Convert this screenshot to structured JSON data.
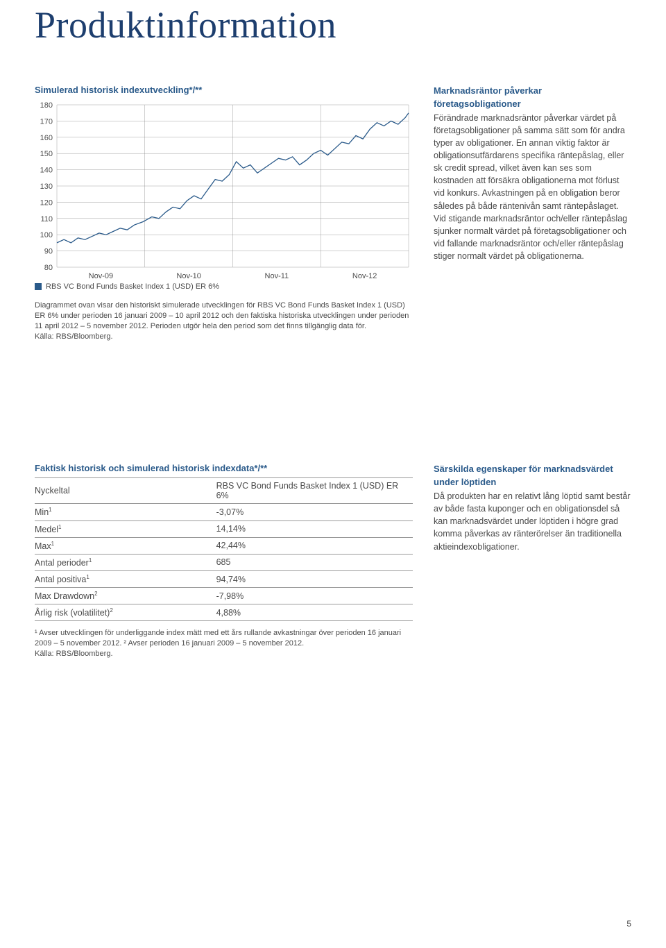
{
  "page": {
    "title": "Produktinformation",
    "page_number": "5"
  },
  "chart": {
    "title": "Simulerad historisk indexutveckling*/**",
    "type": "line",
    "ylim": [
      80,
      180
    ],
    "ytick_step": 10,
    "yticks": [
      "180",
      "170",
      "160",
      "150",
      "140",
      "130",
      "120",
      "110",
      "100",
      "90",
      "80"
    ],
    "xticks": [
      "Nov-09",
      "Nov-10",
      "Nov-11",
      "Nov-12"
    ],
    "line_color": "#2a5a8a",
    "line_width": 1.3,
    "grid_color": "#888888",
    "background_color": "#ffffff",
    "label_fontsize": 11,
    "series": [
      {
        "x": 0.0,
        "y": 95
      },
      {
        "x": 0.02,
        "y": 97
      },
      {
        "x": 0.04,
        "y": 95
      },
      {
        "x": 0.06,
        "y": 98
      },
      {
        "x": 0.08,
        "y": 97
      },
      {
        "x": 0.1,
        "y": 99
      },
      {
        "x": 0.12,
        "y": 101
      },
      {
        "x": 0.14,
        "y": 100
      },
      {
        "x": 0.16,
        "y": 102
      },
      {
        "x": 0.18,
        "y": 104
      },
      {
        "x": 0.2,
        "y": 103
      },
      {
        "x": 0.22,
        "y": 106
      },
      {
        "x": 0.245,
        "y": 108
      },
      {
        "x": 0.27,
        "y": 111
      },
      {
        "x": 0.29,
        "y": 110
      },
      {
        "x": 0.31,
        "y": 114
      },
      {
        "x": 0.33,
        "y": 117
      },
      {
        "x": 0.35,
        "y": 116
      },
      {
        "x": 0.37,
        "y": 121
      },
      {
        "x": 0.39,
        "y": 124
      },
      {
        "x": 0.41,
        "y": 122
      },
      {
        "x": 0.43,
        "y": 128
      },
      {
        "x": 0.45,
        "y": 134
      },
      {
        "x": 0.47,
        "y": 133
      },
      {
        "x": 0.49,
        "y": 137
      },
      {
        "x": 0.51,
        "y": 145
      },
      {
        "x": 0.53,
        "y": 141
      },
      {
        "x": 0.55,
        "y": 143
      },
      {
        "x": 0.57,
        "y": 138
      },
      {
        "x": 0.59,
        "y": 141
      },
      {
        "x": 0.61,
        "y": 144
      },
      {
        "x": 0.63,
        "y": 147
      },
      {
        "x": 0.65,
        "y": 146
      },
      {
        "x": 0.67,
        "y": 148
      },
      {
        "x": 0.69,
        "y": 143
      },
      {
        "x": 0.71,
        "y": 146
      },
      {
        "x": 0.73,
        "y": 150
      },
      {
        "x": 0.75,
        "y": 152
      },
      {
        "x": 0.77,
        "y": 149
      },
      {
        "x": 0.79,
        "y": 153
      },
      {
        "x": 0.81,
        "y": 157
      },
      {
        "x": 0.83,
        "y": 156
      },
      {
        "x": 0.85,
        "y": 161
      },
      {
        "x": 0.87,
        "y": 159
      },
      {
        "x": 0.89,
        "y": 165
      },
      {
        "x": 0.91,
        "y": 169
      },
      {
        "x": 0.93,
        "y": 167
      },
      {
        "x": 0.95,
        "y": 170
      },
      {
        "x": 0.97,
        "y": 168
      },
      {
        "x": 0.99,
        "y": 172
      },
      {
        "x": 1.0,
        "y": 175
      }
    ],
    "legend_label": "RBS VC Bond Funds Basket Index 1 (USD) ER 6%",
    "description": "Diagrammet ovan visar den historiskt simulerade utvecklingen för RBS VC Bond Funds Basket Index 1 (USD) ER 6% under perioden 16 januari 2009 – 10 april 2012 och den faktiska historiska utvecklingen under perioden 11 april 2012 – 5 november 2012. Perioden utgör hela den period som det finns tillgänglig data för.\nKälla: RBS/Bloomberg."
  },
  "rightcol1": {
    "heading": "Marknadsräntor påverkar företagsobligationer",
    "body": "Förändrade marknadsräntor påverkar värdet på företagsobligationer på samma sätt som för andra typer av obligationer. En annan viktig faktor är obligationsutfärdarens specifika räntepåslag, eller sk credit spread, vilket även kan ses som kostnaden att försäkra obligationerna mot förlust vid konkurs. Avkastningen på en obligation beror således på både räntenivån samt räntepåslaget. Vid stigande marknadsräntor och/eller räntepåslag sjunker normalt värdet på företagsobligationer och vid fallande marknadsräntor och/eller räntepåslag stiger normalt värdet på obligationerna."
  },
  "table": {
    "title": "Faktisk historisk och simulerad historisk indexdata*/**",
    "col_headers": [
      "Nyckeltal",
      "RBS VC Bond Funds Basket Index 1 (USD) ER 6%"
    ],
    "rows": [
      {
        "label": "Min¹",
        "value": "-3,07%"
      },
      {
        "label": "Medel¹",
        "value": "14,14%"
      },
      {
        "label": "Max¹",
        "value": "42,44%"
      },
      {
        "label": "Antal perioder¹",
        "value": "685"
      },
      {
        "label": "Antal positiva¹",
        "value": "94,74%"
      },
      {
        "label": "Max Drawdown²",
        "value": "-7,98%"
      },
      {
        "label": "Årlig risk (volatilitet)²",
        "value": "4,88%"
      }
    ],
    "footnote": "¹ Avser utvecklingen för underliggande index mätt med ett års rullande avkastningar över perioden 16 januari 2009 – 5 november 2012. ² Avser perioden 16 januari 2009 – 5 november 2012.\nKälla: RBS/Bloomberg."
  },
  "rightcol2": {
    "heading": "Särskilda egenskaper för marknadsvärdet under löptiden",
    "body": "Då produkten har en relativt lång löptid samt består av både fasta kuponger och en obligationsdel så kan marknadsvärdet under löptiden i högre grad komma påverkas av ränterörelser än traditionella aktieindexobligationer."
  }
}
